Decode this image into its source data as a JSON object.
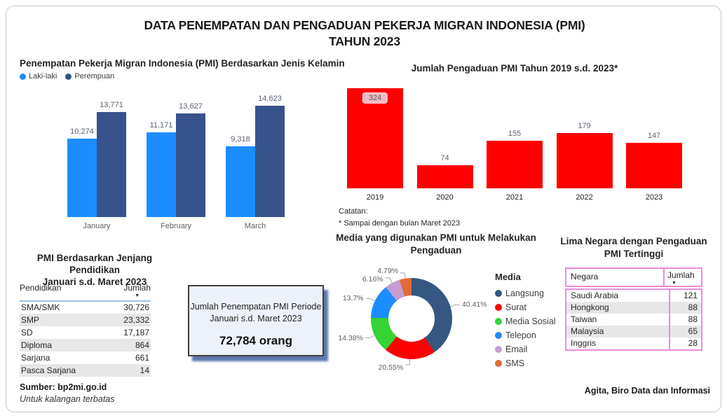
{
  "header": {
    "title_line1": "DATA PENEMPATAN DAN PENGADUAN PEKERJA MIGRAN INDONESIA (PMI)",
    "title_line2": "TAHUN 2023"
  },
  "icons": {
    "sort_desc": "▼"
  },
  "chart_data": [
    {
      "id": "penempatan-gender",
      "type": "bar",
      "title": "Penempatan Pekerja Migran Indonesia (PMI) Berdasarkan Jenis Kelamin",
      "categories": [
        "January",
        "February",
        "March"
      ],
      "series": [
        {
          "name": "Laki-laki",
          "color": "#1C8DFF",
          "values": [
            10274,
            11171,
            9318
          ]
        },
        {
          "name": "Perempuan",
          "color": "#36538B",
          "values": [
            13771,
            13627,
            14623
          ]
        }
      ],
      "legend_position": "top-left",
      "data_labels": true,
      "grid": false,
      "ylim": [
        0,
        16000
      ]
    },
    {
      "id": "pengaduan-tahun",
      "type": "bar",
      "title": "Jumlah Pengaduan PMI Tahun 2019 s.d. 2023*",
      "categories": [
        "2019",
        "2020",
        "2021",
        "2022",
        "2023"
      ],
      "values": [
        324,
        74,
        155,
        179,
        147
      ],
      "color": "#FE0000",
      "highlighted_label_index": 0,
      "highlight_badge_color": "#F3BBC7",
      "note_title": "Catatan:",
      "note": "* Sampai dengan bulan Maret 2023",
      "data_labels": true,
      "grid": false,
      "ylim": [
        0,
        350
      ]
    },
    {
      "id": "media-pengaduan",
      "type": "pie",
      "donut": true,
      "title": "Media yang digunakan PMI untuk Melakukan Pengaduan",
      "legend_title": "Media",
      "legend_position": "right",
      "slices": [
        {
          "label": "Langsung",
          "pct": 40.41,
          "pct_label": "40.41%",
          "color": "#355781"
        },
        {
          "label": "Surat",
          "pct": 20.55,
          "pct_label": "20.55%",
          "color": "#FE0000"
        },
        {
          "label": "Media Sosial",
          "pct": 14.38,
          "pct_label": "14.38%",
          "color": "#33D433"
        },
        {
          "label": "Telepon",
          "pct": 13.7,
          "pct_label": "13.7%",
          "color": "#1C8DFF"
        },
        {
          "label": "Email",
          "pct": 6.16,
          "pct_label": "6.16%",
          "color": "#C49CD4"
        },
        {
          "label": "SMS",
          "pct": 4.79,
          "pct_label": "4.79%",
          "color": "#E06B38"
        }
      ]
    },
    {
      "id": "pendidikan-table",
      "type": "table",
      "title_line1": "PMI Berdasarkan Jenjang Pendidikan",
      "title_line2": "Januari s.d. Maret 2023",
      "columns": [
        "Pendidikan",
        "Jumlah"
      ],
      "sorted_by": "Jumlah",
      "rows": [
        [
          "SMA/SMK",
          "30,726"
        ],
        [
          "SMP",
          "23,332"
        ],
        [
          "SD",
          "17,187"
        ],
        [
          "Diploma",
          "864"
        ],
        [
          "Sarjana",
          "661"
        ],
        [
          "Pasca Sarjana",
          "14"
        ]
      ]
    },
    {
      "id": "negara-table",
      "type": "table",
      "title_line1": "Lima Negara dengan Pengaduan",
      "title_line2": "PMI Tertinggi",
      "columns": [
        "Negara",
        "Jumlah"
      ],
      "sorted_by": "Jumlah",
      "border_color": "#EF8BDF",
      "rows": [
        [
          "Saudi Arabia",
          "121"
        ],
        [
          "Hongkong",
          "88"
        ],
        [
          "Taiwan",
          "88"
        ],
        [
          "Malaysia",
          "65"
        ],
        [
          "Inggris",
          "28"
        ]
      ]
    }
  ],
  "info_box": {
    "line1": "Jumlah Penempatan PMI Periode",
    "line2": "Januari s.d. Maret 2023",
    "value": "72,784 orang"
  },
  "footer": {
    "source": "Sumber: bp2mi.go.id",
    "restriction": "Untuk kalangan terbatas",
    "credit": "Agita, Biro Data dan Informasi"
  }
}
